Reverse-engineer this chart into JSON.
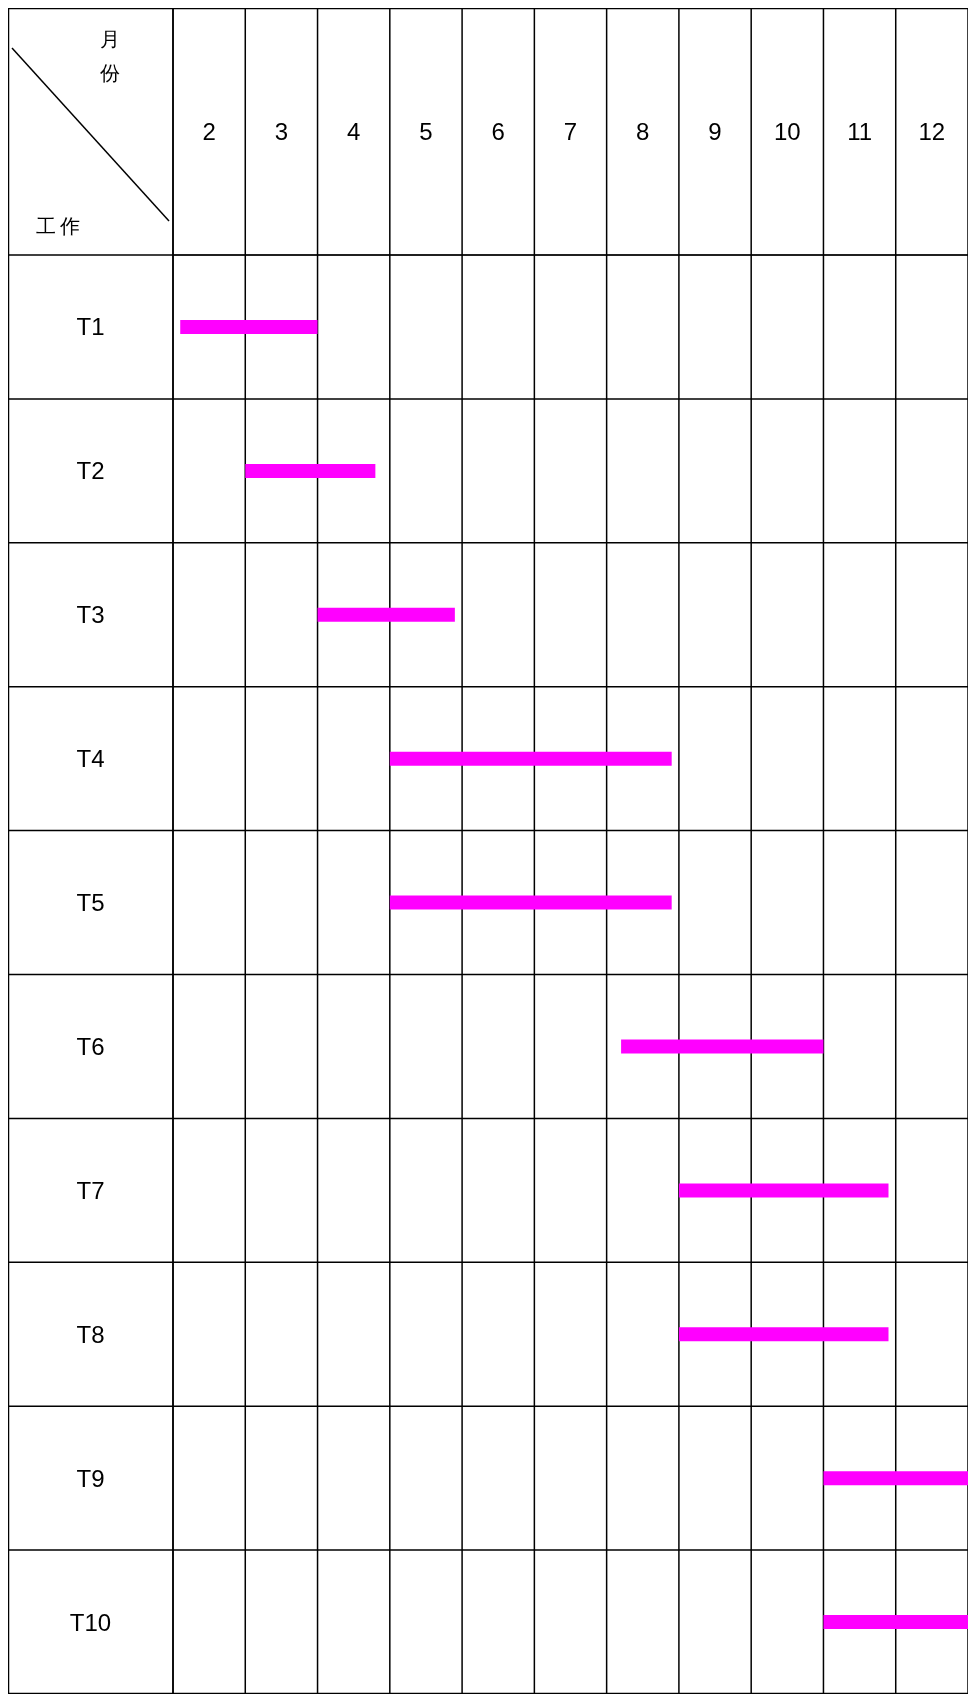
{
  "chart_data": {
    "type": "bar",
    "orientation": "horizontal",
    "xlabel": "月份",
    "ylabel": "工作",
    "categories": [
      "T1",
      "T2",
      "T3",
      "T4",
      "T5",
      "T6",
      "T7",
      "T8",
      "T9",
      "T10"
    ],
    "base": [
      2.1,
      3.0,
      4.0,
      5.0,
      5.0,
      8.2,
      9.0,
      9.0,
      11.0,
      11.0
    ],
    "values": [
      1.9,
      1.8,
      1.9,
      3.9,
      3.9,
      2.8,
      2.9,
      2.9,
      2.0,
      2.0
    ],
    "color": "#ff00ff",
    "xlim": [
      2,
      13
    ],
    "xticks": [
      {
        "value": 2.5,
        "label": "2"
      },
      {
        "value": 3.5,
        "label": "3"
      },
      {
        "value": 4.5,
        "label": "4"
      },
      {
        "value": 5.5,
        "label": "5"
      },
      {
        "value": 6.5,
        "label": "6"
      },
      {
        "value": 7.5,
        "label": "7"
      },
      {
        "value": 8.5,
        "label": "8"
      },
      {
        "value": 9.5,
        "label": "9"
      },
      {
        "value": 10.5,
        "label": "10"
      },
      {
        "value": 11.5,
        "label": "11"
      },
      {
        "value": 12.5,
        "label": "12"
      }
    ],
    "grid": true
  }
}
